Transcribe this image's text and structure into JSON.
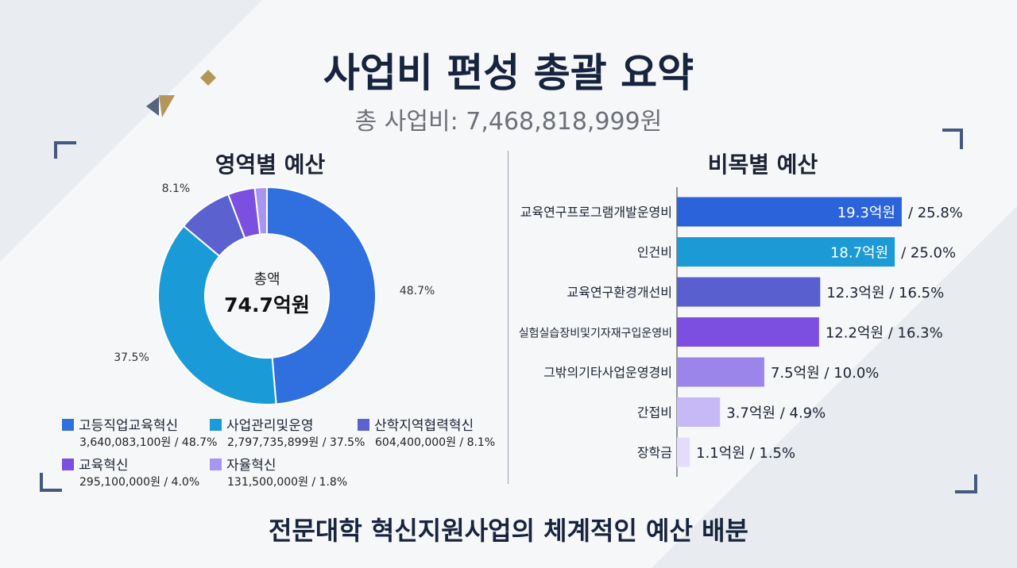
{
  "title": "사업비 편성 총괄 요약",
  "subtitle": "총 사업비: 7,468,818,999원",
  "footer": "전문대학 혁신지원사업의 체계적인 예산 배분",
  "chart_data": [
    {
      "type": "pie",
      "title": "영역별 예산",
      "donut": true,
      "center_label": "총액",
      "center_value": "74.7억원",
      "slices": [
        {
          "name": "고등직업교육혁신",
          "amount": "3,640,083,100원",
          "percent": 48.7,
          "label": "48.7%",
          "color": "#2f6fde"
        },
        {
          "name": "사업관리및운영",
          "amount": "2,797,735,899원",
          "percent": 37.5,
          "label": "37.5%",
          "color": "#1a9bd8"
        },
        {
          "name": "산학지역협력혁신",
          "amount": "604,400,000원",
          "percent": 8.1,
          "label": "8.1%",
          "color": "#5b62d0"
        },
        {
          "name": "교육혁신",
          "amount": "295,100,000원",
          "percent": 4.0,
          "label": "4.0%",
          "color": "#7b4fe0"
        },
        {
          "name": "자율혁신",
          "amount": "131,500,000원",
          "percent": 1.8,
          "label": "",
          "color": "#a995f0"
        }
      ]
    },
    {
      "type": "bar",
      "orientation": "horizontal",
      "title": "비목별 예산",
      "unit": "억원",
      "categories": [
        "교육연구프로그램개발운영비",
        "인건비",
        "교육연구환경개선비",
        "실험실습장비및기자재구입운영비",
        "그밖의기타사업운영경비",
        "간접비",
        "장학금"
      ],
      "values": [
        19.3,
        18.7,
        12.3,
        12.2,
        7.5,
        3.7,
        1.1
      ],
      "percents": [
        "25.8%",
        "25.0%",
        "16.5%",
        "16.3%",
        "10.0%",
        "4.9%",
        "1.5%"
      ],
      "colors": [
        "#2b63db",
        "#1b9ad6",
        "#5a5fcf",
        "#7c4fe0",
        "#9c85ea",
        "#c7b9f5",
        "#e4dcfa"
      ]
    }
  ]
}
